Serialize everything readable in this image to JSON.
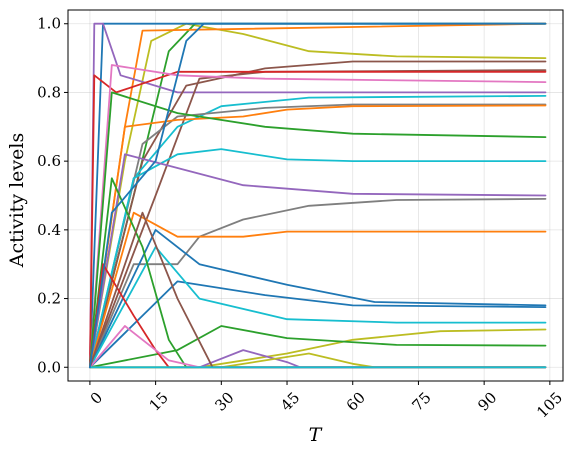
{
  "chart_data": {
    "type": "line",
    "title": "",
    "xlabel": "T",
    "ylabel": "Activity levels",
    "xlim": [
      -5,
      108
    ],
    "ylim": [
      -0.04,
      1.04
    ],
    "xticks": [
      0,
      15,
      30,
      45,
      60,
      75,
      90,
      105
    ],
    "xtick_labels": [
      "0",
      "15",
      "30",
      "45",
      "60",
      "75",
      "90",
      "105"
    ],
    "yticks": [
      0.0,
      0.2,
      0.4,
      0.6,
      0.8,
      1.0
    ],
    "ytick_labels": [
      "0.0",
      "0.2",
      "0.4",
      "0.6",
      "0.8",
      "1.0"
    ],
    "grid": true,
    "series": [
      {
        "color": "#bcbd22",
        "points": [
          [
            0,
            0
          ],
          [
            8,
            0.6
          ],
          [
            14,
            0.95
          ],
          [
            22,
            1.0
          ],
          [
            35,
            0.97
          ],
          [
            50,
            0.92
          ],
          [
            70,
            0.905
          ],
          [
            104,
            0.9
          ]
        ]
      },
      {
        "color": "#2ca02c",
        "points": [
          [
            0,
            0
          ],
          [
            10,
            0.5
          ],
          [
            18,
            0.92
          ],
          [
            24,
            1.0
          ],
          [
            104,
            1.0
          ]
        ]
      },
      {
        "color": "#1f77b4",
        "points": [
          [
            0,
            0
          ],
          [
            3,
            1.0
          ],
          [
            104,
            1.0
          ]
        ]
      },
      {
        "color": "#ff7f0e",
        "points": [
          [
            0,
            0
          ],
          [
            8,
            0.7
          ],
          [
            12,
            0.98
          ],
          [
            104,
            1.0
          ]
        ]
      },
      {
        "color": "#9467bd",
        "points": [
          [
            0,
            0
          ],
          [
            1,
            1.0
          ],
          [
            3,
            1.0
          ],
          [
            7,
            0.85
          ],
          [
            20,
            0.8
          ],
          [
            104,
            0.8
          ]
        ]
      },
      {
        "color": "#8c564b",
        "points": [
          [
            0,
            0
          ],
          [
            12,
            0.6
          ],
          [
            22,
            0.82
          ],
          [
            40,
            0.87
          ],
          [
            60,
            0.89
          ],
          [
            104,
            0.89
          ]
        ]
      },
      {
        "color": "#8c564b",
        "points": [
          [
            0,
            0
          ],
          [
            15,
            0.5
          ],
          [
            25,
            0.84
          ],
          [
            40,
            0.86
          ],
          [
            104,
            0.865
          ]
        ]
      },
      {
        "color": "#d62728",
        "points": [
          [
            0,
            0
          ],
          [
            1,
            0.85
          ],
          [
            6,
            0.8
          ],
          [
            20,
            0.86
          ],
          [
            104,
            0.86
          ]
        ]
      },
      {
        "color": "#e377c2",
        "points": [
          [
            0,
            0
          ],
          [
            5,
            0.88
          ],
          [
            20,
            0.85
          ],
          [
            40,
            0.84
          ],
          [
            104,
            0.83
          ]
        ]
      },
      {
        "color": "#17becf",
        "points": [
          [
            0,
            0
          ],
          [
            10,
            0.55
          ],
          [
            20,
            0.7
          ],
          [
            30,
            0.76
          ],
          [
            50,
            0.785
          ],
          [
            104,
            0.79
          ]
        ]
      },
      {
        "color": "#7f7f7f",
        "points": [
          [
            0,
            0
          ],
          [
            12,
            0.65
          ],
          [
            20,
            0.73
          ],
          [
            40,
            0.755
          ],
          [
            60,
            0.765
          ],
          [
            104,
            0.765
          ]
        ]
      },
      {
        "color": "#ff7f0e",
        "points": [
          [
            0,
            0
          ],
          [
            8,
            0.7
          ],
          [
            20,
            0.72
          ],
          [
            35,
            0.73
          ],
          [
            45,
            0.75
          ],
          [
            60,
            0.76
          ],
          [
            104,
            0.762
          ]
        ]
      },
      {
        "color": "#2ca02c",
        "points": [
          [
            0,
            0
          ],
          [
            5,
            0.8
          ],
          [
            20,
            0.74
          ],
          [
            40,
            0.7
          ],
          [
            60,
            0.68
          ],
          [
            104,
            0.67
          ]
        ]
      },
      {
        "color": "#17becf",
        "points": [
          [
            0,
            0
          ],
          [
            10,
            0.55
          ],
          [
            20,
            0.62
          ],
          [
            30,
            0.635
          ],
          [
            45,
            0.605
          ],
          [
            60,
            0.6
          ],
          [
            104,
            0.6
          ]
        ]
      },
      {
        "color": "#9467bd",
        "points": [
          [
            0,
            0
          ],
          [
            8,
            0.62
          ],
          [
            20,
            0.58
          ],
          [
            35,
            0.53
          ],
          [
            60,
            0.505
          ],
          [
            104,
            0.5
          ]
        ]
      },
      {
        "color": "#7f7f7f",
        "points": [
          [
            0,
            0
          ],
          [
            10,
            0.3
          ],
          [
            20,
            0.3
          ],
          [
            25,
            0.38
          ],
          [
            35,
            0.43
          ],
          [
            50,
            0.47
          ],
          [
            70,
            0.487
          ],
          [
            104,
            0.49
          ]
        ]
      },
      {
        "color": "#ff7f0e",
        "points": [
          [
            0,
            0
          ],
          [
            10,
            0.45
          ],
          [
            20,
            0.38
          ],
          [
            35,
            0.38
          ],
          [
            45,
            0.395
          ],
          [
            104,
            0.395
          ]
        ]
      },
      {
        "color": "#1f77b4",
        "points": [
          [
            0,
            0
          ],
          [
            15,
            0.4
          ],
          [
            25,
            0.3
          ],
          [
            45,
            0.24
          ],
          [
            65,
            0.19
          ],
          [
            104,
            0.18
          ]
        ]
      },
      {
        "color": "#1f77b4",
        "points": [
          [
            0,
            0
          ],
          [
            20,
            0.25
          ],
          [
            40,
            0.21
          ],
          [
            60,
            0.18
          ],
          [
            104,
            0.175
          ]
        ]
      },
      {
        "color": "#17becf",
        "points": [
          [
            0,
            0
          ],
          [
            15,
            0.35
          ],
          [
            25,
            0.2
          ],
          [
            45,
            0.14
          ],
          [
            70,
            0.13
          ],
          [
            104,
            0.13
          ]
        ]
      },
      {
        "color": "#bcbd22",
        "points": [
          [
            0,
            0
          ],
          [
            25,
            0
          ],
          [
            45,
            0.04
          ],
          [
            60,
            0.08
          ],
          [
            80,
            0.105
          ],
          [
            104,
            0.11
          ]
        ]
      },
      {
        "color": "#2ca02c",
        "points": [
          [
            0,
            0
          ],
          [
            20,
            0.05
          ],
          [
            30,
            0.12
          ],
          [
            45,
            0.085
          ],
          [
            70,
            0.065
          ],
          [
            104,
            0.063
          ]
        ]
      },
      {
        "color": "#2ca02c",
        "points": [
          [
            0,
            0
          ],
          [
            5,
            0.55
          ],
          [
            12,
            0.35
          ],
          [
            18,
            0.08
          ],
          [
            22,
            0
          ],
          [
            104,
            0
          ]
        ]
      },
      {
        "color": "#d62728",
        "points": [
          [
            0,
            0
          ],
          [
            3,
            0.3
          ],
          [
            10,
            0.15
          ],
          [
            15,
            0.05
          ],
          [
            18,
            0
          ],
          [
            104,
            0
          ]
        ]
      },
      {
        "color": "#9467bd",
        "points": [
          [
            0,
            0
          ],
          [
            25,
            0
          ],
          [
            35,
            0.05
          ],
          [
            45,
            0.015
          ],
          [
            48,
            0
          ],
          [
            104,
            0
          ]
        ]
      },
      {
        "color": "#bcbd22",
        "points": [
          [
            0,
            0
          ],
          [
            30,
            0
          ],
          [
            40,
            0.02
          ],
          [
            50,
            0.04
          ],
          [
            60,
            0.01
          ],
          [
            65,
            0
          ],
          [
            104,
            0
          ]
        ]
      },
      {
        "color": "#e377c2",
        "points": [
          [
            0,
            0
          ],
          [
            8,
            0.12
          ],
          [
            18,
            0.02
          ],
          [
            25,
            0
          ],
          [
            104,
            0
          ]
        ]
      },
      {
        "color": "#8c564b",
        "points": [
          [
            0,
            0
          ],
          [
            12,
            0.45
          ],
          [
            20,
            0.2
          ],
          [
            28,
            0
          ],
          [
            104,
            0
          ]
        ]
      },
      {
        "color": "#17becf",
        "points": [
          [
            0,
            0
          ],
          [
            104,
            0
          ]
        ]
      },
      {
        "color": "#1f77b4",
        "points": [
          [
            0,
            0
          ],
          [
            5,
            0.45
          ],
          [
            15,
            0.6
          ],
          [
            22,
            0.95
          ],
          [
            26,
            1.0
          ],
          [
            104,
            1.0
          ]
        ]
      }
    ]
  }
}
